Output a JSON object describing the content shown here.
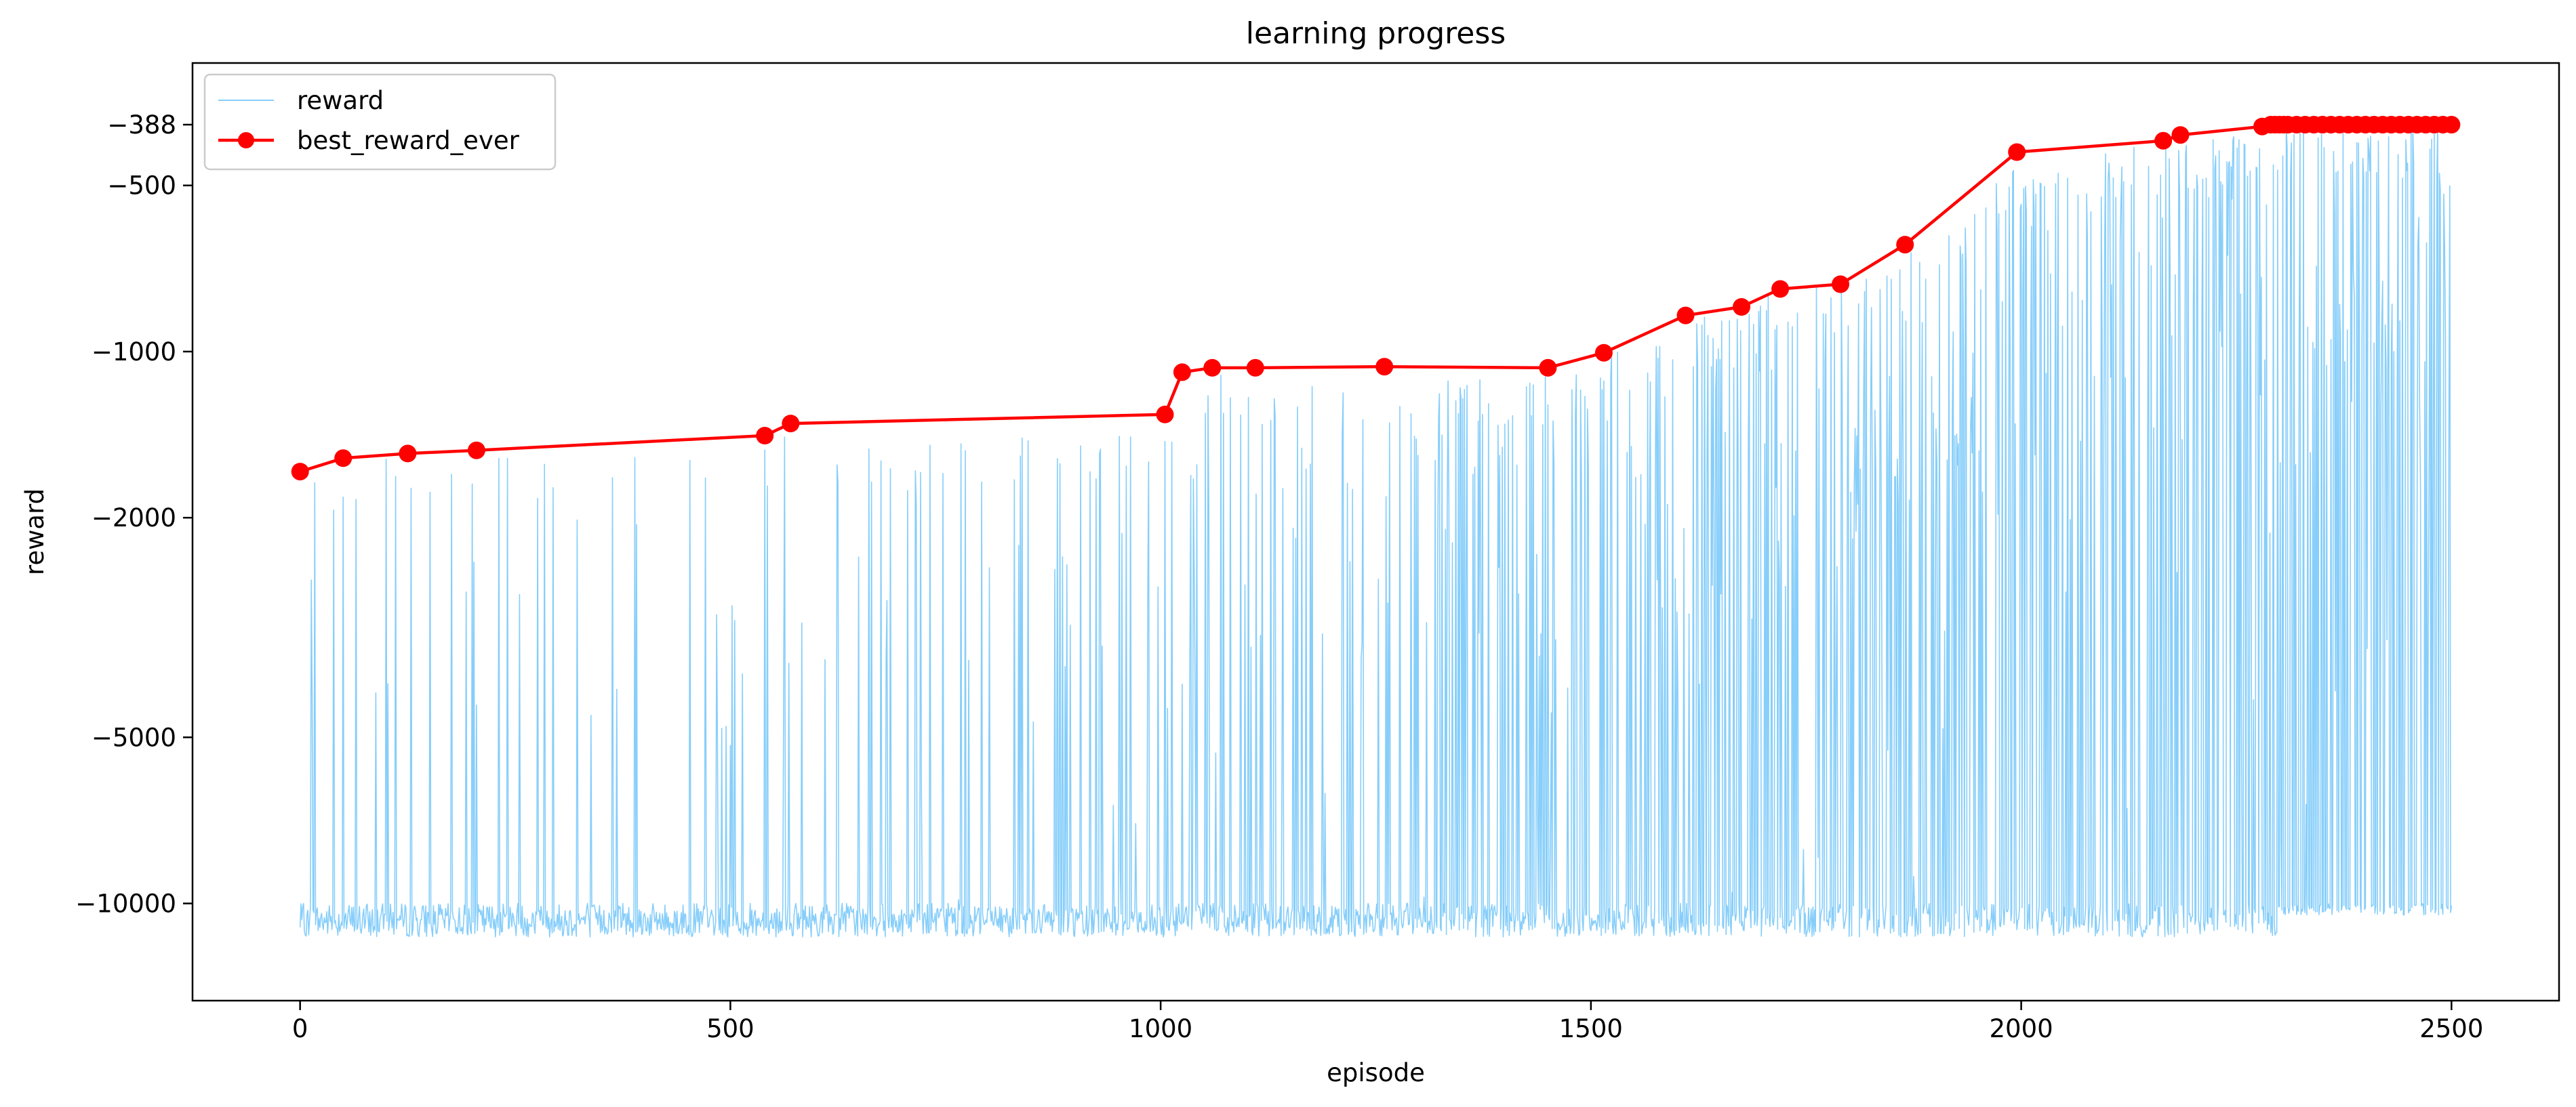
{
  "chart_data": {
    "type": "line",
    "title": "learning progress",
    "xlabel": "episode",
    "ylabel": "reward",
    "xlim": [
      -125,
      2625
    ],
    "y_scale": "symlog",
    "ylim": [
      -15000,
      -300
    ],
    "x_ticks": [
      0,
      500,
      1000,
      1500,
      2000,
      2500
    ],
    "x_tick_labels": [
      "0",
      "500",
      "1000",
      "1500",
      "2000",
      "2500"
    ],
    "y_ticks": [
      -388,
      -500,
      -1000,
      -2000,
      -5000,
      -10000
    ],
    "y_tick_labels": [
      "−388",
      "−500",
      "−1000",
      "−2000",
      "−5000",
      "−10000"
    ],
    "grid": false,
    "legend_position": "upper left",
    "series": [
      {
        "name": "reward",
        "color": "#87CEFA",
        "style": "thin line, noisy per-episode reward",
        "n_episodes": 2500,
        "baseline_range": [
          -11500,
          -10000
        ],
        "spike_envelope": [
          [
            0,
            -1700
          ],
          [
            50,
            -1600
          ],
          [
            125,
            -1550
          ],
          [
            205,
            -1520
          ],
          [
            300,
            -1600
          ],
          [
            540,
            -1470
          ],
          [
            570,
            -1400
          ],
          [
            700,
            -1450
          ],
          [
            1000,
            -1380
          ],
          [
            1025,
            -1150
          ],
          [
            1060,
            -1100
          ],
          [
            1110,
            -1100
          ],
          [
            1260,
            -1090
          ],
          [
            1450,
            -1090
          ],
          [
            1515,
            -1010
          ],
          [
            1610,
            -850
          ],
          [
            1675,
            -820
          ],
          [
            1720,
            -760
          ],
          [
            1790,
            -750
          ],
          [
            1865,
            -650
          ],
          [
            1995,
            -450
          ],
          [
            2165,
            -420
          ],
          [
            2185,
            -410
          ],
          [
            2280,
            -390
          ],
          [
            2500,
            -388
          ]
        ]
      },
      {
        "name": "best_reward_ever",
        "color": "#FF0000",
        "marker": "circle",
        "x": [
          0,
          50,
          125,
          205,
          540,
          570,
          1005,
          1025,
          1060,
          1110,
          1260,
          1450,
          1515,
          1610,
          1675,
          1720,
          1790,
          1865,
          1995,
          2165,
          2185,
          2280,
          2290,
          2295,
          2300,
          2305,
          2310,
          2320,
          2330,
          2340,
          2350,
          2360,
          2370,
          2380,
          2390,
          2400,
          2410,
          2420,
          2430,
          2440,
          2450,
          2460,
          2470,
          2480,
          2490,
          2500
        ],
        "y": [
          -1650,
          -1560,
          -1530,
          -1510,
          -1420,
          -1350,
          -1300,
          -1090,
          -1070,
          -1070,
          -1065,
          -1070,
          -1005,
          -860,
          -830,
          -770,
          -755,
          -640,
          -435,
          -415,
          -405,
          -391,
          -388,
          -388,
          -388,
          -388,
          -388,
          -388,
          -388,
          -388,
          -388,
          -388,
          -388,
          -388,
          -388,
          -388,
          -388,
          -388,
          -388,
          -388,
          -388,
          -388,
          -388,
          -388,
          -388,
          -388
        ]
      }
    ]
  }
}
